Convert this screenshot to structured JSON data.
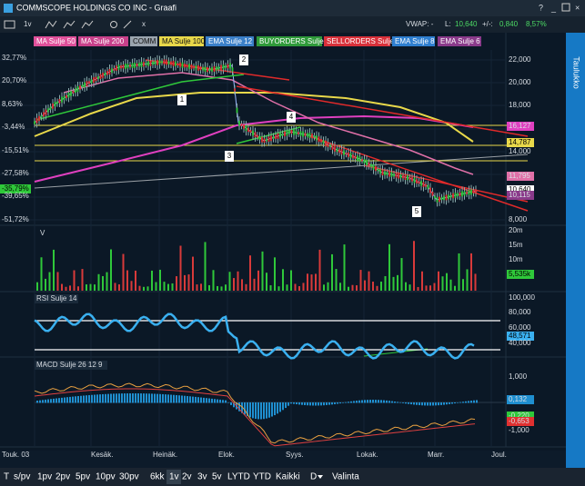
{
  "window": {
    "title": "COMMSCOPE HOLDINGS CO INC - Graafi"
  },
  "toolbar": {
    "period": "1v"
  },
  "quote": {
    "vwap": "VWAP: -",
    "last_label": "L:",
    "last": "10,640",
    "change_label": "+/-:",
    "change": "0,840",
    "change_pct": "8,57%"
  },
  "legend": [
    "MA Sulje 50",
    "MA Sulje 200",
    "COMM",
    "MA Sulje 100",
    "EMA Sulje 12",
    "BUYORDERS Sulje",
    "SELLORDERS Sulje",
    "EMA Sulje 8",
    "EMA Sulje 6"
  ],
  "main": {
    "left_axis": [
      "32,77%",
      "20,70%",
      "8,63%",
      "-3,44%",
      "-15,51%",
      "-27,58%",
      "-35,79%",
      "-39,65%",
      "-51,72%"
    ],
    "right_axis": [
      "22,000",
      "20,000",
      "18,000",
      "16,127",
      "14,787",
      "14,000",
      "11,795",
      "10,640",
      "10,115",
      "8,000"
    ],
    "annotations": [
      "1",
      "2",
      "3",
      "4",
      "5"
    ]
  },
  "volume": {
    "label": "V",
    "axis": [
      "20m",
      "15m",
      "10m",
      "5,535k"
    ]
  },
  "rsi": {
    "label": "RSI Sulje 14",
    "axis": [
      "100,000",
      "80,000",
      "60,000",
      "48,571",
      "40,000"
    ]
  },
  "macd": {
    "label": "MACD Sulje 26 12 9",
    "axis": [
      "1,000",
      "0,132",
      "-0,220",
      "-0,653",
      "-1,000"
    ]
  },
  "x_axis": [
    "Touk. 03",
    "Kesäk.",
    "Heinäk.",
    "Elok.",
    "Syys.",
    "Lokak.",
    "Marr.",
    "Joul."
  ],
  "side_tab": "Taulukko",
  "bottom_bar": [
    "T",
    "s/pv",
    "1pv",
    "2pv",
    "5pv",
    "10pv",
    "30pv",
    "6kk",
    "1v",
    "2v",
    "3v",
    "5v",
    "LYTD",
    "YTD",
    "Kaikki",
    "D",
    "Valinta"
  ]
}
